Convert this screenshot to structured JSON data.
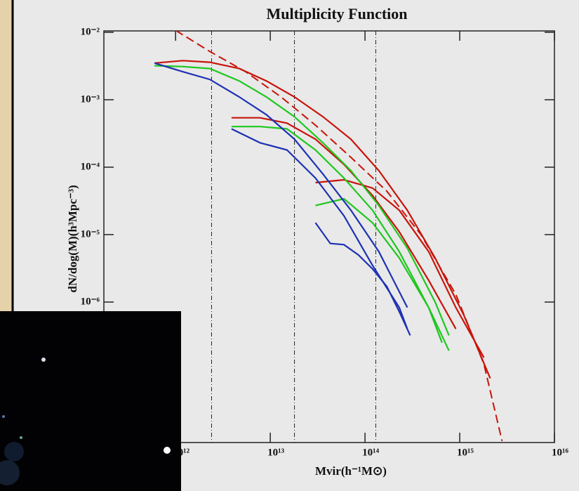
{
  "chart_data": {
    "type": "line",
    "title": "Multiplicity Function",
    "xlabel": "Mvir(h⁻¹M⊙)",
    "ylabel": "dN/dog(M)(h³Mpc⁻³)",
    "xscale": "log",
    "yscale": "log",
    "xlim": [
      175000000000.0,
      1e+16
    ],
    "ylim": [
      1e-08,
      0.01
    ],
    "xticks": [
      {
        "value": 1000000000000.0,
        "label": "10¹²"
      },
      {
        "value": 10000000000000.0,
        "label": "10¹³"
      },
      {
        "value": 100000000000000.0,
        "label": "10¹⁴"
      },
      {
        "value": 1000000000000000.0,
        "label": "10¹⁵"
      },
      {
        "value": 1e+16,
        "label": "10¹⁶"
      }
    ],
    "yticks": [
      {
        "value": 1e-06,
        "label": "10⁻⁶"
      },
      {
        "value": 1e-05,
        "label": "10⁻⁵"
      },
      {
        "value": 0.0001,
        "label": "10⁻⁴"
      },
      {
        "value": 0.001,
        "label": "10⁻³"
      },
      {
        "value": 0.01,
        "label": "10⁻²"
      }
    ],
    "vlines": [
      2400000000000.0,
      18000000000000.0,
      130000000000000.0
    ],
    "series": [
      {
        "color": "#c8140a",
        "x": [
          600000000000.0,
          1200000000000.0,
          2300000000000.0,
          4700000000000.0,
          9100000000000.0,
          18000000000000.0,
          36000000000000.0,
          71000000000000.0,
          140000000000000.0,
          280000000000000.0,
          550000000000000.0,
          1100000000000000.0,
          2100000000000000.0
        ],
        "values": [
          0.0035,
          0.0038,
          0.0036,
          0.0029,
          0.0019,
          0.0011,
          0.00056,
          0.00026,
          8.9e-05,
          2.3e-05,
          4.5e-06,
          6.5e-07,
          7.4e-08
        ]
      },
      {
        "color": "#c8140a",
        "x": [
          3900000000000.0,
          7800000000000.0,
          15000000000000.0,
          30000000000000.0,
          60000000000000.0,
          120000000000000.0,
          230000000000000.0,
          470000000000000.0,
          910000000000000.0
        ],
        "values": [
          0.00054,
          0.00054,
          0.00045,
          0.00026,
          0.00011,
          3.8e-05,
          1.1e-05,
          2.1e-06,
          4e-07
        ]
      },
      {
        "color": "#c8140a",
        "x": [
          30000000000000.0,
          60000000000000.0,
          120000000000000.0,
          230000000000000.0,
          470000000000000.0,
          910000000000000.0,
          1800000000000000.0
        ],
        "values": [
          5.9e-05,
          6.5e-05,
          4.9e-05,
          2.3e-05,
          5.6e-06,
          8.3e-07,
          1.5e-07
        ]
      },
      {
        "color": "#1ec81e",
        "x": [
          600000000000.0,
          1200000000000.0,
          2300000000000.0,
          4700000000000.0,
          9100000000000.0,
          18000000000000.0,
          36000000000000.0,
          71000000000000.0,
          140000000000000.0,
          280000000000000.0,
          550000000000000.0,
          770000000000000.0
        ],
        "values": [
          0.0032,
          0.0031,
          0.0029,
          0.0019,
          0.0011,
          0.00056,
          0.00023,
          8.9e-05,
          2.7e-05,
          6.3e-06,
          1e-06,
          3.2e-07
        ]
      },
      {
        "color": "#1ec81e",
        "x": [
          3900000000000.0,
          7800000000000.0,
          15000000000000.0,
          30000000000000.0,
          60000000000000.0,
          120000000000000.0,
          230000000000000.0,
          470000000000000.0,
          650000000000000.0
        ],
        "values": [
          0.0004,
          0.0004,
          0.00037,
          0.00018,
          6.9e-05,
          2.3e-05,
          5.6e-06,
          8.3e-07,
          2.5e-07
        ]
      },
      {
        "color": "#1ec81e",
        "x": [
          30000000000000.0,
          60000000000000.0,
          120000000000000.0,
          230000000000000.0,
          470000000000000.0,
          770000000000000.0
        ],
        "values": [
          2.7e-05,
          3.4e-05,
          1.5e-05,
          4.5e-06,
          8.3e-07,
          1.9e-07
        ]
      },
      {
        "color": "#1e32b4",
        "x": [
          600000000000.0,
          1200000000000.0,
          2300000000000.0,
          4700000000000.0,
          9100000000000.0,
          18000000000000.0,
          36000000000000.0,
          71000000000000.0,
          140000000000000.0,
          280000000000000.0
        ],
        "values": [
          0.0035,
          0.0026,
          0.002,
          0.0011,
          0.0006,
          0.00026,
          7.9e-05,
          2.3e-05,
          5.6e-06,
          8.3e-07
        ]
      },
      {
        "color": "#1e32b4",
        "x": [
          3900000000000.0,
          7800000000000.0,
          15000000000000.0,
          30000000000000.0,
          60000000000000.0,
          120000000000000.0,
          230000000000000.0,
          280000000000000.0
        ],
        "values": [
          0.00037,
          0.00023,
          0.00018,
          6.9e-05,
          1.9e-05,
          3.5e-06,
          8.3e-07,
          4e-07
        ]
      },
      {
        "color": "#1e32b4",
        "x": [
          30000000000000.0,
          43000000000000.0,
          60000000000000.0,
          85000000000000.0,
          120000000000000.0,
          170000000000000.0,
          230000000000000.0,
          300000000000000.0
        ],
        "values": [
          1.5e-05,
          7.4e-06,
          7.1e-06,
          5e-06,
          3.1e-06,
          1.7e-06,
          7.2e-07,
          3.2e-07
        ]
      },
      {
        "color": "#c8140a",
        "dashed": true,
        "x": [
          1000000000000.0,
          2300000000000.0,
          5500000000000.0,
          13000000000000.0,
          30000000000000.0,
          71000000000000.0,
          170000000000000.0,
          390000000000000.0,
          910000000000000.0,
          1800000000000000.0,
          2800000000000000.0
        ],
        "values": [
          0.0107,
          0.0052,
          0.0026,
          0.0011,
          0.00042,
          0.00014,
          4.4e-05,
          1e-05,
          1.3e-06,
          1.2e-07,
          8.7e-09
        ]
      }
    ]
  }
}
